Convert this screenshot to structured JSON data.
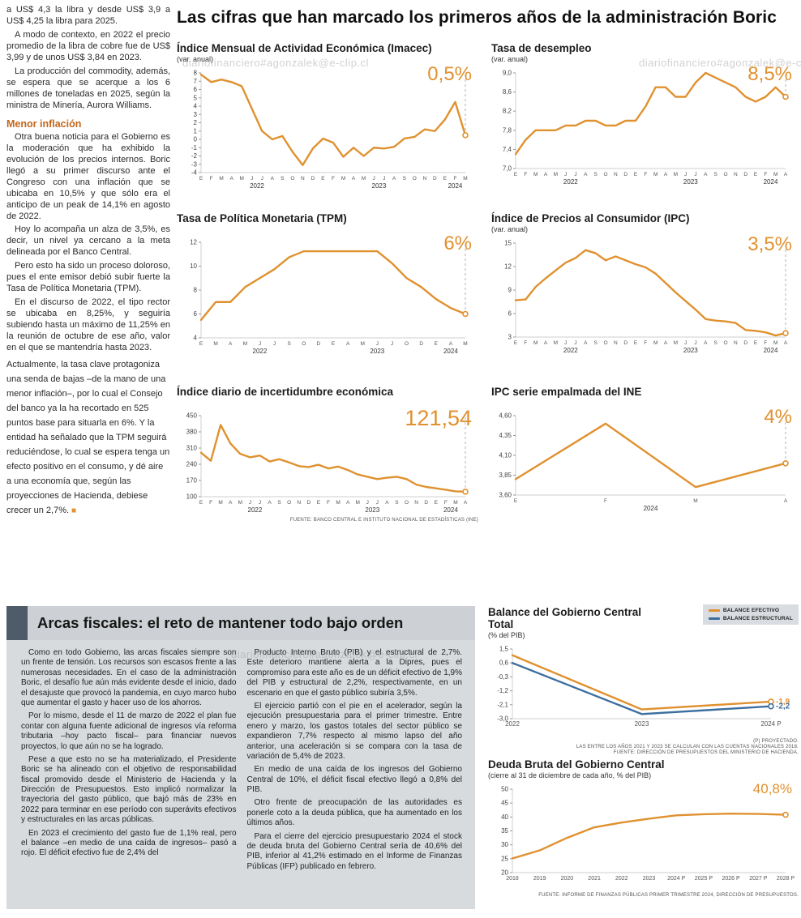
{
  "watermark": "diariofinanciero#agonzalek@e-clip.cl",
  "main": {
    "title": "Las cifras que han marcado los primeros años de la administración Boric"
  },
  "left_column": {
    "paragraphs": [
      "a US$ 4,3 la libra y desde US$ 3,9 a US$ 4,25 la libra para 2025.",
      "A modo de contexto, en 2022 el precio promedio de la libra de cobre fue de US$ 3,99 y de unos US$ 3,84 en 2023.",
      "La producción del commodity, además, se espera que se acerque a los 6 millones de toneladas en 2025, según la ministra de Minería, Aurora Williams."
    ],
    "subhead": "Menor inflación",
    "paragraphs2": [
      "Otra buena noticia para el Gobierno es la moderación que ha exhibido la evolución de los precios internos. Boric llegó a su primer discurso ante el Congreso con una inflación que se ubicaba en 10,5% y que sólo era el anticipo de un peak de 14,1% en agosto de 2022.",
      "Hoy lo acompaña un alza de 3,5%, es decir, un nivel ya cercano a la meta delineada por el Banco Central.",
      "Pero esto ha sido un proceso doloroso, pues el ente emisor debió subir fuerte la Tasa de Política Monetaria (TPM).",
      "En el discurso de 2022, el tipo rector se ubicaba en 8,25%, y seguiría subiendo hasta un máximo de 11,25% en la reunión de octubre de ese año, valor en el que se mantendría hasta 2023.",
      "Actualmente, la tasa clave protagoniza una senda de bajas –de la mano de una menor inflación–, por lo cual el Consejo del banco ya la ha recortado en 525 puntos base para situarla en 6%. Y la entidad ha señalado que la TPM seguirá reduciéndose, lo cual se espera tenga un efecto positivo en el consumo, y dé aire a una economía que, según las proyecciones de Hacienda, debiese crecer un 2,7%."
    ],
    "end_mark": "■"
  },
  "bottom": {
    "title": "Arcas fiscales: el reto de mantener todo bajo orden",
    "col1": [
      "Como en todo Gobierno, las arcas fiscales siempre son un frente de tensión. Los recursos son escasos frente a las numerosas necesidades. En el caso de la administración Boric, el desafío fue aún más evidente desde el inicio, dado el desajuste que provocó la pandemia, en cuyo marco hubo que aumentar el gasto y hacer uso de los ahorros.",
      "Por lo mismo, desde el 11 de marzo de 2022 el plan fue contar con alguna fuente adicional de ingresos vía reforma tributaria –hoy pacto fiscal– para financiar nuevos proyectos, lo que aún no se ha logrado.",
      "Pese a que esto no se ha materializado, el Presidente Boric se ha alineado con el objetivo de responsabilidad fiscal promovido desde el Ministerio de Hacienda y la Dirección de Presupuestos. Esto implicó normalizar la trayectoria del gasto público, que bajó más de 23% en 2022 para terminar en ese período con superávits efectivos y estructurales en las arcas públicas.",
      "En 2023 el crecimiento del gasto fue de 1,1% real, pero el balance –en medio de una caída de ingresos– pasó a rojo. El déficit efectivo fue de 2,4% del"
    ],
    "col2": [
      "Producto Interno Bruto (PIB) y el estructural de 2,7%. Este deterioro mantiene alerta a la Dipres, pues el compromiso para este año es de un déficit efectivo de 1,9% del PIB y estructural de 2,2%, respectivamente, en un escenario en que el gasto público subiría 3,5%.",
      "El ejercicio partió con el pie en el acelerador, según la ejecución presupuestaria para el primer trimestre. Entre enero y marzo, los gastos totales del sector público se expandieron 7,7% respecto al mismo lapso del año anterior, una aceleración si se compara con la tasa de variación de 5,4% de 2023.",
      "En medio de una caída de los ingresos del Gobierno Central de 10%, el déficit fiscal efectivo llegó a 0,8% del PIB.",
      "Otro frente de preocupación de las autoridades es ponerle coto a la deuda pública, que ha aumentado en los últimos años.",
      "Para el cierre del ejercicio presupuestario 2024 el stock de deuda bruta del Gobierno Central sería de 40,6% del PIB, inferior al 41,2% estimado en el Informe de Finanzas Públicas (IFP) publicado en febrero."
    ]
  },
  "chart_data": [
    {
      "type": "line",
      "title": "Índice Mensual de Actividad Económica (Imacec)",
      "subtitle": "(var. anual)",
      "big_label": "0,5%",
      "dashed_end": true,
      "y_ticks": [
        {
          "v": 8,
          "label": "8"
        },
        {
          "v": 7,
          "label": "7"
        },
        {
          "v": 6,
          "label": "6"
        },
        {
          "v": 5,
          "label": "5"
        },
        {
          "v": 4,
          "label": "4"
        },
        {
          "v": 3,
          "label": "3"
        },
        {
          "v": 2,
          "label": "2"
        },
        {
          "v": 1,
          "label": "1"
        },
        {
          "v": 0,
          "label": "0"
        },
        {
          "v": -1,
          "label": "-1"
        },
        {
          "v": -2,
          "label": "-2"
        },
        {
          "v": -3,
          "label": "-3"
        },
        {
          "v": -4,
          "label": "-4"
        }
      ],
      "x_labels": [
        "E",
        "F",
        "M",
        "A",
        "M",
        "J",
        "J",
        "A",
        "S",
        "O",
        "N",
        "D",
        "E",
        "F",
        "M",
        "A",
        "M",
        "J",
        "J",
        "A",
        "S",
        "O",
        "N",
        "D",
        "E",
        "F",
        "M"
      ],
      "years": [
        {
          "label": "2022",
          "i": 5.5
        },
        {
          "label": "2023",
          "i": 17.5
        },
        {
          "label": "2024",
          "i": 25
        }
      ],
      "series": [
        {
          "name": "Imacec",
          "color": "#E0912F",
          "values": [
            7.8,
            6.9,
            7.2,
            6.9,
            6.4,
            3.7,
            1.0,
            0.0,
            0.4,
            -1.5,
            -3.1,
            -1.1,
            0.1,
            -0.4,
            -2.1,
            -1.0,
            -2.0,
            -1.0,
            -1.1,
            -0.9,
            0.1,
            0.3,
            1.2,
            1.0,
            2.4,
            4.5,
            0.5
          ]
        }
      ]
    },
    {
      "type": "line",
      "title": "Tasa de desempleo",
      "subtitle": "(var. anual)",
      "big_label": "8,5%",
      "dashed_end": true,
      "y_ticks": [
        {
          "v": 9.0,
          "label": "9,0"
        },
        {
          "v": 8.6,
          "label": "8,6"
        },
        {
          "v": 8.2,
          "label": "8,2"
        },
        {
          "v": 7.8,
          "label": "7,8"
        },
        {
          "v": 7.4,
          "label": "7,4"
        },
        {
          "v": 7.0,
          "label": "7,0"
        }
      ],
      "x_labels": [
        "E",
        "F",
        "M",
        "A",
        "M",
        "J",
        "J",
        "A",
        "S",
        "O",
        "N",
        "D",
        "E",
        "F",
        "M",
        "A",
        "M",
        "J",
        "J",
        "A",
        "S",
        "O",
        "N",
        "D",
        "E",
        "F",
        "M",
        "A"
      ],
      "years": [
        {
          "label": "2022",
          "i": 5.5
        },
        {
          "label": "2023",
          "i": 17.5
        },
        {
          "label": "2024",
          "i": 25.5
        }
      ],
      "series": [
        {
          "name": "Tasa de desempleo",
          "color": "#E0912F",
          "values": [
            7.3,
            7.6,
            7.8,
            7.8,
            7.8,
            7.9,
            7.9,
            8.0,
            8.0,
            7.9,
            7.9,
            8.0,
            8.0,
            8.3,
            8.7,
            8.7,
            8.5,
            8.5,
            8.8,
            9.0,
            8.9,
            8.8,
            8.7,
            8.5,
            8.4,
            8.5,
            8.7,
            8.5
          ]
        }
      ]
    },
    {
      "type": "line",
      "title": "Tasa de Política Monetaria (TPM)",
      "subtitle": "",
      "big_label": "6%",
      "dashed_end": true,
      "y_ticks": [
        {
          "v": 12,
          "label": "12"
        },
        {
          "v": 10,
          "label": "10"
        },
        {
          "v": 8,
          "label": "8"
        },
        {
          "v": 6,
          "label": "6"
        },
        {
          "v": 4,
          "label": "4"
        }
      ],
      "x_labels": [
        "E",
        "M",
        "A",
        "M",
        "J",
        "J",
        "S",
        "O",
        "D",
        "E",
        "A",
        "M",
        "J",
        "J",
        "O",
        "D",
        "E",
        "A",
        "M"
      ],
      "years": [
        {
          "label": "2022",
          "i": 4
        },
        {
          "label": "2023",
          "i": 12
        },
        {
          "label": "2024",
          "i": 17
        }
      ],
      "series": [
        {
          "name": "TPM",
          "color": "#E0912F",
          "values": [
            5.5,
            7.0,
            7.0,
            8.25,
            9.0,
            9.75,
            10.75,
            11.25,
            11.25,
            11.25,
            11.25,
            11.25,
            11.25,
            10.25,
            9.0,
            8.25,
            7.25,
            6.5,
            6.0
          ]
        }
      ]
    },
    {
      "type": "line",
      "title": "Índice de Precios al Consumidor (IPC)",
      "subtitle": "(var. anual)",
      "big_label": "3,5%",
      "dashed_end": true,
      "y_ticks": [
        {
          "v": 15,
          "label": "15"
        },
        {
          "v": 12,
          "label": "12"
        },
        {
          "v": 9,
          "label": "9"
        },
        {
          "v": 6,
          "label": "6"
        },
        {
          "v": 3,
          "label": "3"
        }
      ],
      "x_labels": [
        "E",
        "F",
        "M",
        "A",
        "M",
        "J",
        "J",
        "A",
        "S",
        "O",
        "N",
        "D",
        "E",
        "F",
        "M",
        "A",
        "M",
        "J",
        "J",
        "A",
        "S",
        "O",
        "N",
        "D",
        "E",
        "F",
        "M",
        "A"
      ],
      "years": [
        {
          "label": "2022",
          "i": 5.5
        },
        {
          "label": "2023",
          "i": 17.5
        },
        {
          "label": "2024",
          "i": 25.5
        }
      ],
      "series": [
        {
          "name": "IPC",
          "color": "#E0912F",
          "values": [
            7.7,
            7.8,
            9.4,
            10.5,
            11.5,
            12.5,
            13.1,
            14.1,
            13.7,
            12.8,
            13.3,
            12.8,
            12.3,
            11.9,
            11.1,
            9.9,
            8.7,
            7.6,
            6.5,
            5.3,
            5.1,
            5.0,
            4.8,
            3.9,
            3.8,
            3.6,
            3.2,
            3.5
          ]
        }
      ]
    },
    {
      "type": "line",
      "title": "Índice diario de incertidumbre económica",
      "subtitle": "",
      "big_label": "121,54",
      "dashed_end": true,
      "source": "FUENTE: BANCO CENTRAL E INSTITUTO NACIONAL DE ESTADÍSTICAS (INE)",
      "y_ticks": [
        {
          "v": 450,
          "label": "450"
        },
        {
          "v": 380,
          "label": "380"
        },
        {
          "v": 310,
          "label": "310"
        },
        {
          "v": 240,
          "label": "240"
        },
        {
          "v": 170,
          "label": "170"
        },
        {
          "v": 100,
          "label": "100"
        }
      ],
      "x_labels": [
        "E",
        "F",
        "M",
        "A",
        "M",
        "J",
        "J",
        "A",
        "S",
        "O",
        "N",
        "D",
        "E",
        "F",
        "M",
        "A",
        "M",
        "J",
        "J",
        "A",
        "S",
        "O",
        "N",
        "D",
        "E",
        "F",
        "M",
        "A"
      ],
      "years": [
        {
          "label": "2022",
          "i": 5.5
        },
        {
          "label": "2023",
          "i": 17.5
        },
        {
          "label": "2024",
          "i": 25.5
        }
      ],
      "series": [
        {
          "name": "Incertidumbre económica",
          "color": "#E0912F",
          "values": [
            290,
            255,
            410,
            330,
            285,
            270,
            278,
            252,
            262,
            248,
            232,
            228,
            238,
            222,
            230,
            215,
            196,
            186,
            176,
            182,
            186,
            176,
            152,
            142,
            136,
            130,
            123,
            121.54
          ]
        }
      ]
    },
    {
      "type": "line",
      "title": "IPC serie empalmada del INE",
      "subtitle": "",
      "big_label": "4%",
      "dashed_end": true,
      "y_ticks": [
        {
          "v": 4.6,
          "label": "4,60"
        },
        {
          "v": 4.35,
          "label": "4,35"
        },
        {
          "v": 4.1,
          "label": "4,10"
        },
        {
          "v": 3.85,
          "label": "3,85"
        },
        {
          "v": 3.6,
          "label": "3,60"
        }
      ],
      "x_labels": [
        "E",
        "F",
        "M",
        "A"
      ],
      "years": [
        {
          "label": "2024",
          "i": 1.5
        }
      ],
      "series": [
        {
          "name": "IPC serie empalmada",
          "color": "#E0912F",
          "values": [
            3.8,
            4.5,
            3.7,
            4.0
          ]
        }
      ]
    },
    {
      "type": "line",
      "title": "Balance del Gobierno Central Total",
      "subtitle": "(% del PIB)",
      "dashed_end": false,
      "y_ticks": [
        {
          "v": 1.5,
          "label": "1,5"
        },
        {
          "v": 0.6,
          "label": "0,6"
        },
        {
          "v": -0.3,
          "label": "-0,3"
        },
        {
          "v": -1.2,
          "label": "-1,2"
        },
        {
          "v": -2.1,
          "label": "-2,1"
        },
        {
          "v": -3.0,
          "label": "-3,0"
        }
      ],
      "x_labels": [
        "2022",
        "2023",
        "2024 P"
      ],
      "years": [],
      "series": [
        {
          "name": "BALANCE EFECTIVO",
          "color": "#E0912F",
          "values": [
            1.1,
            -2.4,
            -1.9
          ],
          "end_label": "-1,9"
        },
        {
          "name": "BALANCE ESTRUCTURAL",
          "color": "#3C6E9F",
          "values": [
            0.6,
            -2.7,
            -2.2
          ],
          "end_label": "-2,2"
        }
      ],
      "footnotes": [
        "(P) PROYECTADO.",
        "LAS ENTRE LOS AÑOS 2021 Y 2023 SE CALCULAN CON LAS CUENTAS NACIONALES 2018.",
        "FUENTE: DIRECCIÓN DE PRESUPUESTOS DEL MINISTERIO DE HACIENDA."
      ]
    },
    {
      "type": "line",
      "title": "Deuda Bruta del Gobierno Central",
      "subtitle": "(cierre al 31 de diciembre de cada año, % del PIB)",
      "big_label": "40,8%",
      "dashed_end": false,
      "source": "FUENTE: INFORME DE FINANZAS PÚBLICAS PRIMER TRIMESTRE 2024, DIRECCIÓN DE PRESUPUESTOS.",
      "y_ticks": [
        {
          "v": 50,
          "label": "50"
        },
        {
          "v": 45,
          "label": "45"
        },
        {
          "v": 40,
          "label": "40"
        },
        {
          "v": 35,
          "label": "35"
        },
        {
          "v": 30,
          "label": "30"
        },
        {
          "v": 25,
          "label": "25"
        },
        {
          "v": 20,
          "label": "20"
        }
      ],
      "x_labels": [
        "2018",
        "2019",
        "2020",
        "2021",
        "2022",
        "2023",
        "2024 P",
        "2025 P",
        "2026 P",
        "2027 P",
        "2028 P"
      ],
      "years": [],
      "series": [
        {
          "name": "Deuda bruta",
          "color": "#E0912F",
          "values": [
            25.1,
            28.0,
            32.5,
            36.3,
            38.0,
            39.4,
            40.6,
            41.0,
            41.2,
            41.1,
            40.8
          ]
        }
      ]
    }
  ]
}
